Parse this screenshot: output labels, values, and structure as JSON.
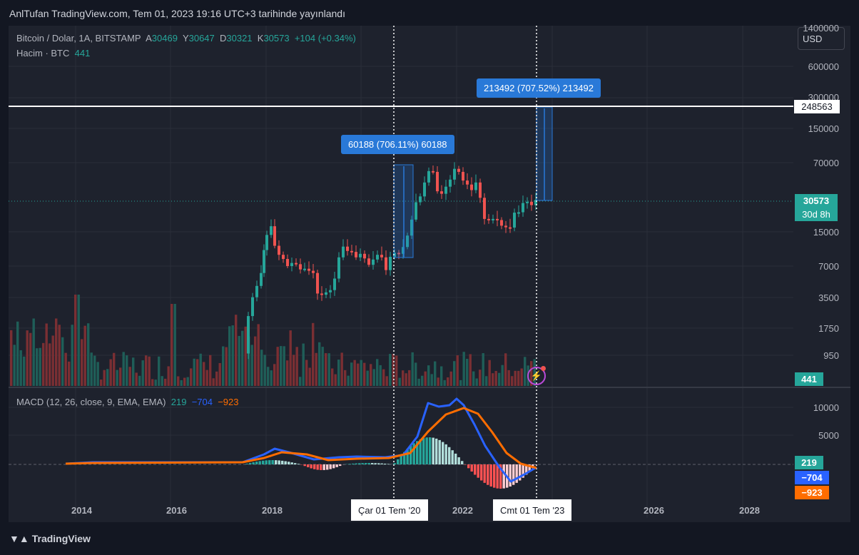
{
  "header": {
    "published": "AnlTufan TradingView.com, Tem 01, 2023 19:16 UTC+3 tarihinde yayınlandı"
  },
  "symbol": {
    "name": "Bitcoin / Dolar, 1A, BITSTAMP",
    "open_k": "A",
    "open": "30469",
    "high_k": "Y",
    "high": "30647",
    "low_k": "D",
    "low": "30321",
    "close_k": "K",
    "close": "30573",
    "change": "+104 (+0.34%)"
  },
  "volume_legend": {
    "label": "Hacim · BTC",
    "value": "441"
  },
  "macd_legend": {
    "label": "MACD (12, 26, close, 9, EMA, EMA)",
    "hist": "219",
    "macd": "−704",
    "signal": "−923"
  },
  "currency_button": "USD",
  "price_axis": [
    "1400000",
    "600000",
    "300000",
    "150000",
    "70000",
    "15000",
    "7000",
    "3500",
    "1750",
    "950"
  ],
  "macd_axis": [
    "10000",
    "5000"
  ],
  "tags": {
    "line_price": "248563",
    "last_price": "30573",
    "countdown": "30d 8h",
    "volume": "441",
    "macd_hist": "219",
    "macd_line": "−704",
    "signal_line": "−923"
  },
  "measures": [
    {
      "text": "60188 (706.11%) 60188"
    },
    {
      "text": "213492 (707.52%) 213492"
    }
  ],
  "x_axis": [
    "2014",
    "2016",
    "2018",
    "2022",
    "2026",
    "2028"
  ],
  "x_markers": [
    "Çar 01 Tem '20",
    "Cmt 01 Tem '23"
  ],
  "brand": "TradingView",
  "colors": {
    "up": "#26a69a",
    "down": "#ef5350",
    "macd": "#2962ff",
    "signal": "#ff6d00",
    "bg": "#1e222d",
    "measure": "#2979d8"
  },
  "chart_data": {
    "type": "candlestick",
    "title": "Bitcoin / Dolar, 1A, BITSTAMP",
    "scale": "log",
    "grid": true,
    "candles_approx": [
      {
        "d": "2017-12",
        "o": 10000,
        "h": 19600,
        "l": 10000,
        "c": 14000
      },
      {
        "d": "2018-12",
        "o": 4000,
        "h": 4200,
        "l": 3200,
        "c": 3700
      },
      {
        "d": "2019-06",
        "o": 8500,
        "h": 13800,
        "l": 7500,
        "c": 10800
      },
      {
        "d": "2020-03",
        "o": 8500,
        "h": 9200,
        "l": 3850,
        "c": 6400
      },
      {
        "d": "2020-07",
        "o": 9200,
        "h": 11500,
        "l": 9000,
        "c": 11350
      },
      {
        "d": "2021-04",
        "o": 58800,
        "h": 64800,
        "l": 47000,
        "c": 57700
      },
      {
        "d": "2021-11",
        "o": 61300,
        "h": 69000,
        "l": 53000,
        "c": 57000
      },
      {
        "d": "2022-11",
        "o": 20500,
        "h": 21500,
        "l": 15500,
        "c": 17200
      },
      {
        "d": "2023-07",
        "o": 30469,
        "h": 30647,
        "l": 30321,
        "c": 30573
      }
    ],
    "horizontal_line": 248563,
    "macd": {
      "histogram": 219,
      "macd": -704,
      "signal": -923
    }
  }
}
